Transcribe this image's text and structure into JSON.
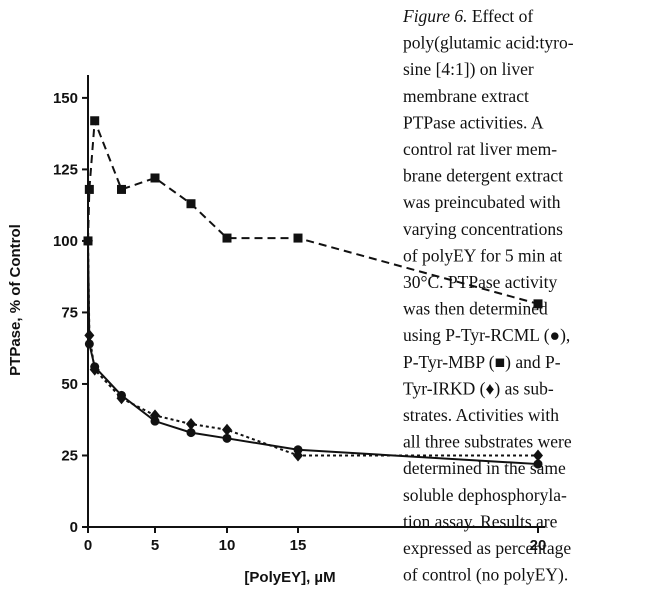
{
  "chart_data": {
    "type": "line",
    "x": [
      0,
      0.1,
      0.5,
      2.5,
      5,
      7.5,
      10,
      15,
      20
    ],
    "series": [
      {
        "color": "#111111",
        "marker": "square",
        "dash": "8,5",
        "values": [
          100,
          118,
          142,
          118,
          122,
          113,
          101,
          101,
          78
        ]
      },
      {
        "color": "#111111",
        "marker": "circle",
        "dash": "none",
        "values": [
          100,
          64,
          56,
          46,
          37,
          33,
          31,
          27,
          22
        ]
      },
      {
        "color": "#111111",
        "marker": "diamond",
        "dash": "3,3",
        "values": [
          100,
          67,
          55,
          45,
          39,
          36,
          34,
          25,
          25
        ]
      }
    ],
    "xlabel": "[PolyEY], µM",
    "ylabel": "PTPase, % of Control",
    "xlim": [
      0,
      20
    ],
    "xticks": [
      0,
      5,
      10,
      15,
      20
    ],
    "ylim": [
      0,
      158
    ],
    "yticks": [
      0,
      25,
      50,
      75,
      100,
      125,
      150
    ]
  },
  "caption": {
    "label": "Figure 6.",
    "lines": [
      "Effect of",
      "poly(glutamic acid:tyro-",
      "sine [4:1]) on liver",
      "membrane extract",
      "PTPase activities. A",
      "control rat liver mem-",
      "brane detergent extract",
      "was preincubated with",
      "varying concentrations",
      "of polyEY for 5 min at",
      "30°C. PTPase activity",
      "was then determined",
      "using P-Tyr-RCML (●),",
      "P-Tyr-MBP (■) and P-",
      "Tyr-IRKD (♦) as sub-",
      "strates. Activities with",
      "all three substrates were",
      "determined in the same",
      "soluble dephosphoryla-",
      "tion assay. Results are",
      "expressed as percentage",
      "of control (no polyEY)."
    ]
  }
}
